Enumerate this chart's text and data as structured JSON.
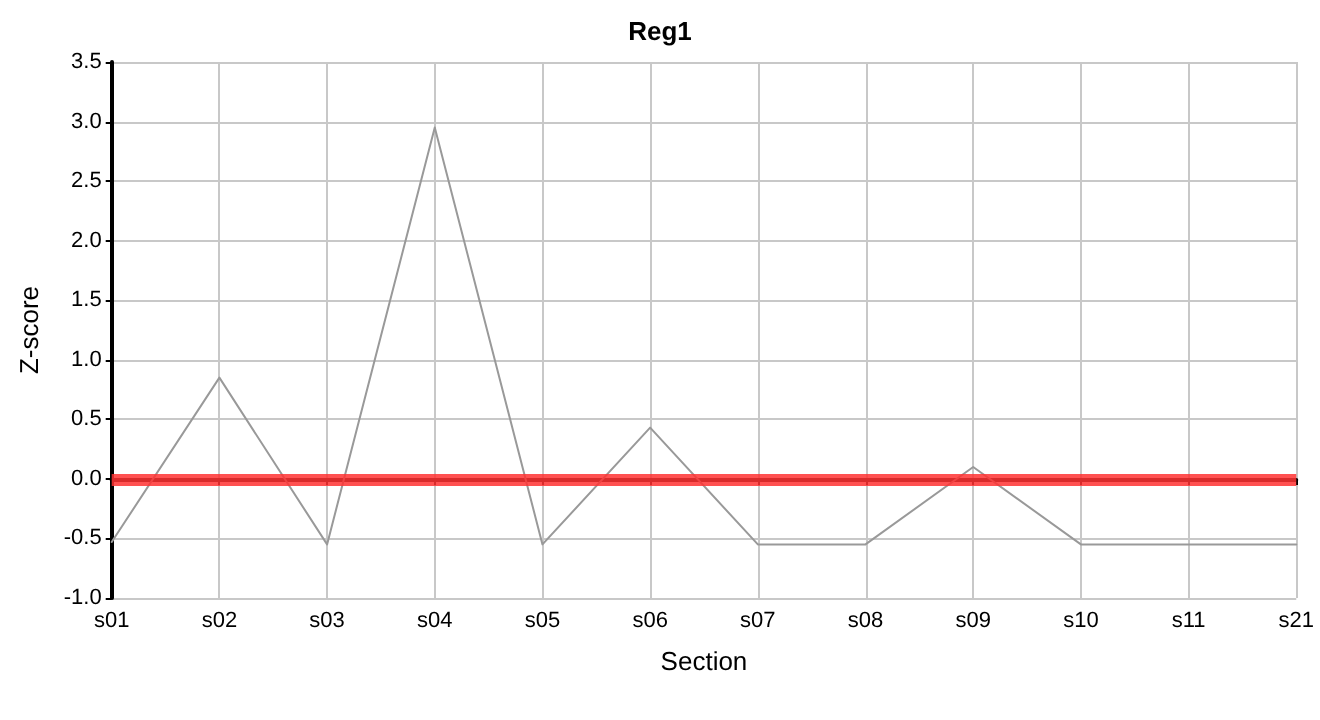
{
  "chart_data": {
    "type": "line",
    "title": "Reg1",
    "xlabel": "Section",
    "ylabel": "Z-score",
    "categories": [
      "s01",
      "s02",
      "s03",
      "s04",
      "s05",
      "s06",
      "s07",
      "s08",
      "s09",
      "s10",
      "s11",
      "s21"
    ],
    "series": [
      {
        "color": "#999999",
        "values": [
          -0.53,
          0.85,
          -0.55,
          2.95,
          -0.55,
          0.43,
          -0.55,
          -0.55,
          0.1,
          -0.55,
          -0.55,
          -0.55
        ]
      }
    ],
    "ylim": [
      -1.0,
      3.5
    ],
    "yticks": [
      {
        "value": -1,
        "label": "-1.0"
      },
      {
        "value": -0.5,
        "label": "-0.5"
      },
      {
        "value": 0,
        "label": "0.0"
      },
      {
        "value": 0.5,
        "label": "0.5"
      },
      {
        "value": 1,
        "label": "1.0"
      },
      {
        "value": 1.5,
        "label": "1.5"
      },
      {
        "value": 2,
        "label": "2.0"
      },
      {
        "value": 2.5,
        "label": "2.5"
      },
      {
        "value": 3,
        "label": "3.0"
      },
      {
        "value": 3.5,
        "label": "3.5"
      }
    ],
    "ref_lines": [
      {
        "axis": "y",
        "value": 0,
        "color": "#ff3333",
        "line_style": "solid"
      }
    ],
    "grid": true,
    "marker": "none",
    "line_style": "solid"
  }
}
